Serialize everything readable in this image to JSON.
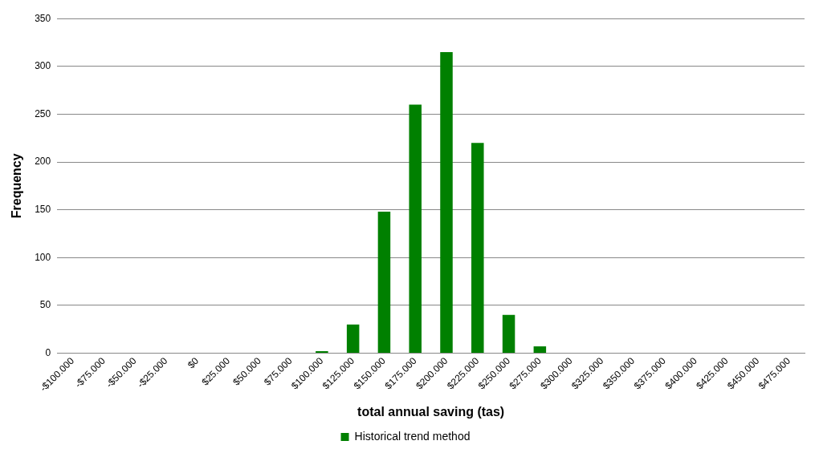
{
  "chart_data": {
    "type": "bar",
    "xlabel": "total annual saving (tas)",
    "ylabel": "Frequency",
    "categories": [
      "-$100.000",
      "-$75.000",
      "-$50.000",
      "-$25.000",
      "$0",
      "$25.000",
      "$50.000",
      "$75.000",
      "$100.000",
      "$125.000",
      "$150.000",
      "$175.000",
      "$200.000",
      "$225.000",
      "$250.000",
      "$275.000",
      "$300.000",
      "$325.000",
      "$350.000",
      "$375.000",
      "$400.000",
      "$425.000",
      "$450.000",
      "$475.000"
    ],
    "series": [
      {
        "name": "Historical trend method",
        "color": "#008000",
        "values": [
          0,
          0,
          0,
          0,
          0,
          0,
          0,
          0,
          2,
          30,
          148,
          260,
          315,
          220,
          40,
          7,
          0,
          0,
          0,
          0,
          0,
          0,
          0,
          0
        ]
      }
    ],
    "ylim": [
      0,
      350
    ],
    "yticks": [
      0,
      50,
      100,
      150,
      200,
      250,
      300,
      350
    ],
    "grid": "y",
    "legend": "bottom"
  }
}
